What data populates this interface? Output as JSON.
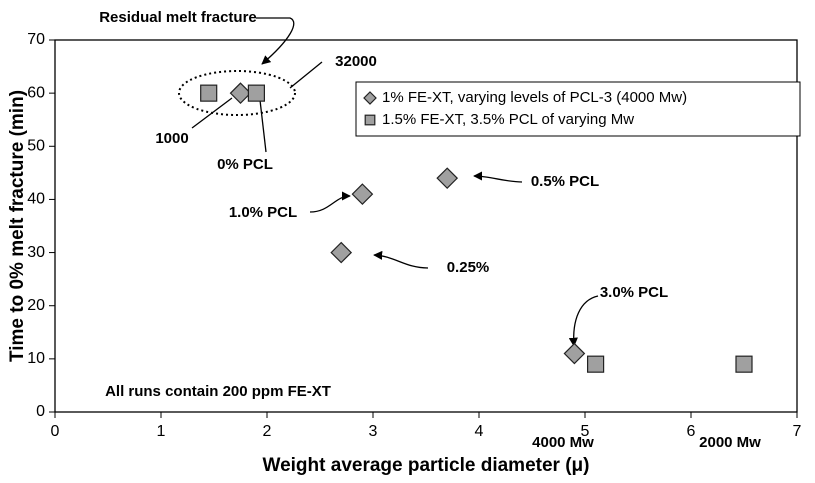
{
  "chart_data": {
    "type": "scatter",
    "xlabel": "Weight average particle diameter (μ)",
    "ylabel": "Time to 0% melt fracture (min)",
    "xlim": [
      0,
      7
    ],
    "xticks": [
      0,
      1,
      2,
      3,
      4,
      5,
      6,
      7
    ],
    "ylim": [
      0,
      70
    ],
    "yticks": [
      0,
      10,
      20,
      30,
      40,
      50,
      60,
      70
    ],
    "grid": false,
    "legend": "upper right",
    "series": [
      {
        "name": "1% FE-XT, varying levels of PCL-3 (4000 Mw)",
        "color": "#a0a0a0",
        "marker": "diamond",
        "x": [
          1.75,
          3.7,
          2.9,
          2.7,
          4.9
        ],
        "values": [
          60,
          44,
          41,
          30,
          11
        ]
      },
      {
        "name": "1.5% FE-XT, 3.5% PCL of varying Mw",
        "color": "#a0a0a0",
        "marker": "square",
        "x": [
          1.45,
          1.9,
          5.1,
          6.5
        ],
        "values": [
          60,
          60,
          9,
          9
        ]
      }
    ],
    "annotations": [
      "Residual melt fracture",
      "32000",
      "1000",
      "0% PCL",
      "0.5% PCL",
      "1.0% PCL",
      "0.25%",
      "3.0% PCL",
      "4000 Mw",
      "2000 Mw",
      "All runs contain 200 ppm FE-XT"
    ]
  }
}
